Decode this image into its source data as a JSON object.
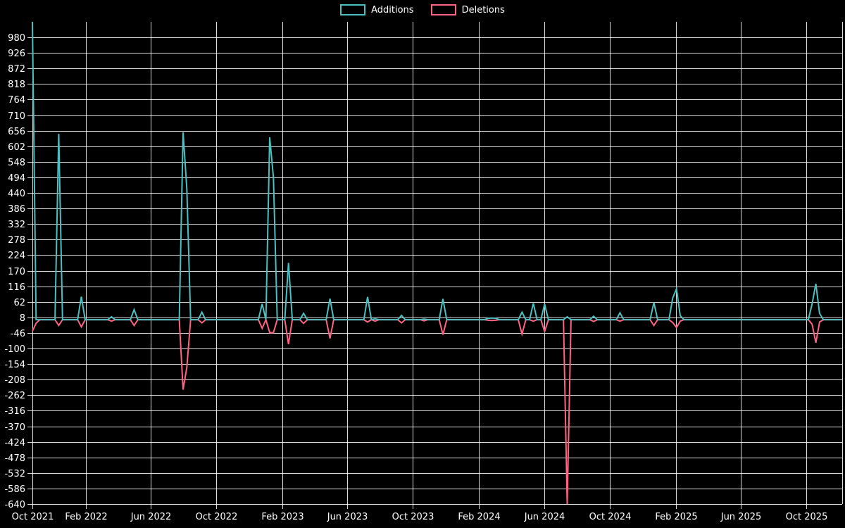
{
  "legend": {
    "items": [
      {
        "label": "Additions",
        "color": "#4bc0c0"
      },
      {
        "label": "Deletions",
        "color": "#ff6384"
      }
    ]
  },
  "colors": {
    "background": "#000000",
    "grid": "rgba(255,255,255,0.85)",
    "tick_text": "#ffffff",
    "additions": "#4bc0c0",
    "deletions": "#ff6384"
  },
  "chart_data": {
    "type": "line",
    "title": "",
    "xlabel": "",
    "ylabel": "",
    "interval": "weekly",
    "legend_position": "top",
    "grid": "on",
    "x_axis": {
      "type": "time",
      "start": "2021-10-24",
      "end": "2025-12-07",
      "ticks": [
        {
          "date": "2021-10-24",
          "label": "Oct 2021"
        },
        {
          "date": "2022-02-01",
          "label": "Feb 2022"
        },
        {
          "date": "2022-06-01",
          "label": "Jun 2022"
        },
        {
          "date": "2022-10-01",
          "label": "Oct 2022"
        },
        {
          "date": "2023-02-01",
          "label": "Feb 2023"
        },
        {
          "date": "2023-06-01",
          "label": "Jun 2023"
        },
        {
          "date": "2023-10-01",
          "label": "Oct 2023"
        },
        {
          "date": "2024-02-01",
          "label": "Feb 2024"
        },
        {
          "date": "2024-06-01",
          "label": "Jun 2024"
        },
        {
          "date": "2024-10-01",
          "label": "Oct 2024"
        },
        {
          "date": "2025-02-01",
          "label": "Feb 2025"
        },
        {
          "date": "2025-06-01",
          "label": "Jun 2025"
        },
        {
          "date": "2025-10-01",
          "label": "Oct 2025"
        }
      ]
    },
    "y_axis": {
      "min": -640,
      "max": 1034,
      "tick_step": 54,
      "tick_labels": [
        980,
        926,
        872,
        818,
        764,
        710,
        656,
        602,
        548,
        494,
        440,
        386,
        332,
        278,
        224,
        170,
        116,
        62,
        8,
        -46,
        -100,
        -154,
        -208,
        -262,
        -316,
        -370,
        -424,
        -478,
        -532,
        -586,
        -640
      ]
    },
    "series": [
      {
        "name": "Additions",
        "color": "#4bc0c0",
        "default_value": 0
      },
      {
        "name": "Deletions",
        "color": "#ff6384",
        "default_value": 0
      }
    ],
    "nonzero_weeks": [
      {
        "date": "2021-10-24",
        "additions": 1034,
        "deletions": -40
      },
      {
        "date": "2021-10-31",
        "additions": 0,
        "deletions": -12
      },
      {
        "date": "2021-12-12",
        "additions": 645,
        "deletions": -20
      },
      {
        "date": "2022-01-23",
        "additions": 80,
        "deletions": -25
      },
      {
        "date": "2022-03-20",
        "additions": 10,
        "deletions": -5
      },
      {
        "date": "2022-05-01",
        "additions": 35,
        "deletions": -20
      },
      {
        "date": "2022-07-31",
        "additions": 650,
        "deletions": -243
      },
      {
        "date": "2022-08-07",
        "additions": 455,
        "deletions": -166
      },
      {
        "date": "2022-09-04",
        "additions": 26,
        "deletions": -11
      },
      {
        "date": "2022-12-25",
        "additions": 55,
        "deletions": -30
      },
      {
        "date": "2023-01-08",
        "additions": 633,
        "deletions": -45
      },
      {
        "date": "2023-01-15",
        "additions": 494,
        "deletions": -45
      },
      {
        "date": "2023-02-12",
        "additions": 197,
        "deletions": -85
      },
      {
        "date": "2023-03-12",
        "additions": 22,
        "deletions": -13
      },
      {
        "date": "2023-04-30",
        "additions": 73,
        "deletions": -65
      },
      {
        "date": "2023-07-09",
        "additions": 79,
        "deletions": -8
      },
      {
        "date": "2023-07-23",
        "additions": 3,
        "deletions": -5
      },
      {
        "date": "2023-09-10",
        "additions": 15,
        "deletions": -11
      },
      {
        "date": "2023-10-22",
        "additions": 2,
        "deletions": -4
      },
      {
        "date": "2023-11-26",
        "additions": 72,
        "deletions": -52
      },
      {
        "date": "2024-02-18",
        "additions": 5,
        "deletions": -2
      },
      {
        "date": "2024-02-25",
        "additions": 6,
        "deletions": -3
      },
      {
        "date": "2024-03-03",
        "additions": 5,
        "deletions": -2
      },
      {
        "date": "2024-04-21",
        "additions": 26,
        "deletions": -50
      },
      {
        "date": "2024-05-12",
        "additions": 57,
        "deletions": -5
      },
      {
        "date": "2024-06-02",
        "additions": 54,
        "deletions": -41
      },
      {
        "date": "2024-07-14",
        "additions": 10,
        "deletions": -640
      },
      {
        "date": "2024-09-01",
        "additions": 12,
        "deletions": -6
      },
      {
        "date": "2024-10-20",
        "additions": 24,
        "deletions": -5
      },
      {
        "date": "2024-12-22",
        "additions": 60,
        "deletions": -20
      },
      {
        "date": "2025-01-26",
        "additions": 75,
        "deletions": -10
      },
      {
        "date": "2025-02-02",
        "additions": 107,
        "deletions": -27
      },
      {
        "date": "2025-02-09",
        "additions": 14,
        "deletions": -5
      },
      {
        "date": "2025-10-12",
        "additions": 54,
        "deletions": -15
      },
      {
        "date": "2025-10-19",
        "additions": 125,
        "deletions": -80
      },
      {
        "date": "2025-10-26",
        "additions": 22,
        "deletions": -8
      }
    ],
    "note": "All other weekly points are 0 additions / 0 deletions; first additions value and the 2024-07-14 deletions value sit exactly at the clipped axis bounds."
  }
}
